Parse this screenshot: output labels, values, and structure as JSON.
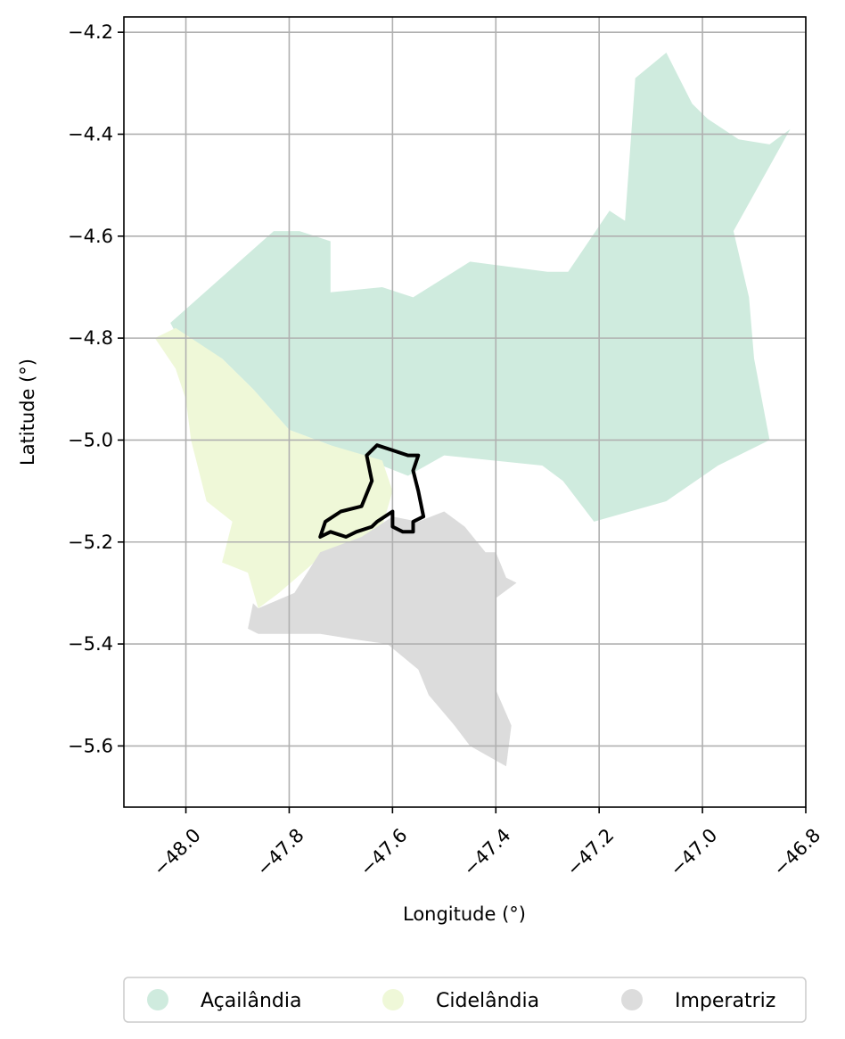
{
  "chart_data": {
    "type": "map",
    "title": "",
    "xlabel": "Longitude (°)",
    "ylabel": "Latitude (°)",
    "xlim": [
      -48.12,
      -46.8
    ],
    "ylim": [
      -5.72,
      -4.17
    ],
    "x_ticks": [
      -48.0,
      -47.8,
      -47.6,
      -47.4,
      -47.2,
      -47.0,
      -46.8
    ],
    "x_tick_labels": [
      "−48.0",
      "−47.8",
      "−47.6",
      "−47.4",
      "−47.2",
      "−47.0",
      "−46.8"
    ],
    "y_ticks": [
      -4.2,
      -4.4,
      -4.6,
      -4.8,
      -5.0,
      -5.2,
      -5.4,
      -5.6
    ],
    "y_tick_labels": [
      "−4.2",
      "−4.4",
      "−4.6",
      "−4.8",
      "−5.0",
      "−5.2",
      "−5.4",
      "−5.6"
    ],
    "grid": true,
    "legend_position": "bottom-center",
    "regions": [
      {
        "name": "Açailândia",
        "color": "#cfebde",
        "outline": [
          [
            -48.03,
            -4.77
          ],
          [
            -47.83,
            -4.59
          ],
          [
            -47.78,
            -4.59
          ],
          [
            -47.72,
            -4.61
          ],
          [
            -47.72,
            -4.71
          ],
          [
            -47.62,
            -4.7
          ],
          [
            -47.56,
            -4.72
          ],
          [
            -47.45,
            -4.65
          ],
          [
            -47.3,
            -4.67
          ],
          [
            -47.26,
            -4.67
          ],
          [
            -47.18,
            -4.55
          ],
          [
            -47.15,
            -4.57
          ],
          [
            -47.13,
            -4.29
          ],
          [
            -47.07,
            -4.24
          ],
          [
            -47.02,
            -4.34
          ],
          [
            -46.99,
            -4.37
          ],
          [
            -46.93,
            -4.41
          ],
          [
            -46.87,
            -4.42
          ],
          [
            -46.83,
            -4.39
          ],
          [
            -46.94,
            -4.59
          ],
          [
            -46.91,
            -4.72
          ],
          [
            -46.9,
            -4.84
          ],
          [
            -46.87,
            -5.0
          ],
          [
            -46.97,
            -5.05
          ],
          [
            -47.07,
            -5.12
          ],
          [
            -47.21,
            -5.16
          ],
          [
            -47.27,
            -5.08
          ],
          [
            -47.31,
            -5.05
          ],
          [
            -47.5,
            -5.03
          ],
          [
            -47.57,
            -5.07
          ],
          [
            -47.72,
            -5.01
          ],
          [
            -47.8,
            -4.98
          ],
          [
            -47.87,
            -4.9
          ],
          [
            -47.93,
            -4.84
          ],
          [
            -48.02,
            -4.79
          ]
        ]
      },
      {
        "name": "Cidelândia",
        "color": "#eff8d8",
        "outline": [
          [
            -48.06,
            -4.8
          ],
          [
            -48.02,
            -4.78
          ],
          [
            -47.93,
            -4.84
          ],
          [
            -47.87,
            -4.9
          ],
          [
            -47.8,
            -4.98
          ],
          [
            -47.72,
            -5.01
          ],
          [
            -47.62,
            -5.04
          ],
          [
            -47.6,
            -5.1
          ],
          [
            -47.62,
            -5.17
          ],
          [
            -47.68,
            -5.2
          ],
          [
            -47.74,
            -5.23
          ],
          [
            -47.82,
            -5.3
          ],
          [
            -47.86,
            -5.33
          ],
          [
            -47.88,
            -5.26
          ],
          [
            -47.93,
            -5.24
          ],
          [
            -47.91,
            -5.16
          ],
          [
            -47.96,
            -5.12
          ],
          [
            -47.99,
            -5.0
          ],
          [
            -48.0,
            -4.92
          ],
          [
            -48.02,
            -4.86
          ]
        ]
      },
      {
        "name": "Imperatriz",
        "color": "#dcdcdc",
        "outline": [
          [
            -47.86,
            -5.33
          ],
          [
            -47.79,
            -5.3
          ],
          [
            -47.74,
            -5.22
          ],
          [
            -47.66,
            -5.19
          ],
          [
            -47.6,
            -5.15
          ],
          [
            -47.55,
            -5.16
          ],
          [
            -47.5,
            -5.14
          ],
          [
            -47.46,
            -5.17
          ],
          [
            -47.42,
            -5.22
          ],
          [
            -47.4,
            -5.22
          ],
          [
            -47.38,
            -5.27
          ],
          [
            -47.36,
            -5.28
          ],
          [
            -47.4,
            -5.31
          ],
          [
            -47.4,
            -5.49
          ],
          [
            -47.37,
            -5.56
          ],
          [
            -47.38,
            -5.64
          ],
          [
            -47.45,
            -5.6
          ],
          [
            -47.48,
            -5.56
          ],
          [
            -47.53,
            -5.5
          ],
          [
            -47.55,
            -5.45
          ],
          [
            -47.61,
            -5.4
          ],
          [
            -47.68,
            -5.39
          ],
          [
            -47.74,
            -5.38
          ],
          [
            -47.8,
            -5.38
          ],
          [
            -47.86,
            -5.38
          ],
          [
            -47.88,
            -5.37
          ],
          [
            -47.87,
            -5.32
          ]
        ]
      }
    ],
    "highlight_boundary": {
      "color": "#000000",
      "outline": [
        [
          -47.63,
          -5.01
        ],
        [
          -47.6,
          -5.02
        ],
        [
          -47.57,
          -5.03
        ],
        [
          -47.55,
          -5.03
        ],
        [
          -47.56,
          -5.06
        ],
        [
          -47.55,
          -5.1
        ],
        [
          -47.54,
          -5.15
        ],
        [
          -47.56,
          -5.16
        ],
        [
          -47.56,
          -5.18
        ],
        [
          -47.58,
          -5.18
        ],
        [
          -47.6,
          -5.17
        ],
        [
          -47.6,
          -5.14
        ],
        [
          -47.63,
          -5.16
        ],
        [
          -47.64,
          -5.17
        ],
        [
          -47.67,
          -5.18
        ],
        [
          -47.69,
          -5.19
        ],
        [
          -47.72,
          -5.18
        ],
        [
          -47.74,
          -5.19
        ],
        [
          -47.73,
          -5.16
        ],
        [
          -47.7,
          -5.14
        ],
        [
          -47.66,
          -5.13
        ],
        [
          -47.64,
          -5.08
        ],
        [
          -47.65,
          -5.03
        ]
      ]
    }
  },
  "legend": {
    "items": [
      {
        "label": "Açailândia",
        "color": "#cfebde"
      },
      {
        "label": "Cidelândia",
        "color": "#eff8d8"
      },
      {
        "label": "Imperatriz",
        "color": "#dcdcdc"
      }
    ]
  }
}
